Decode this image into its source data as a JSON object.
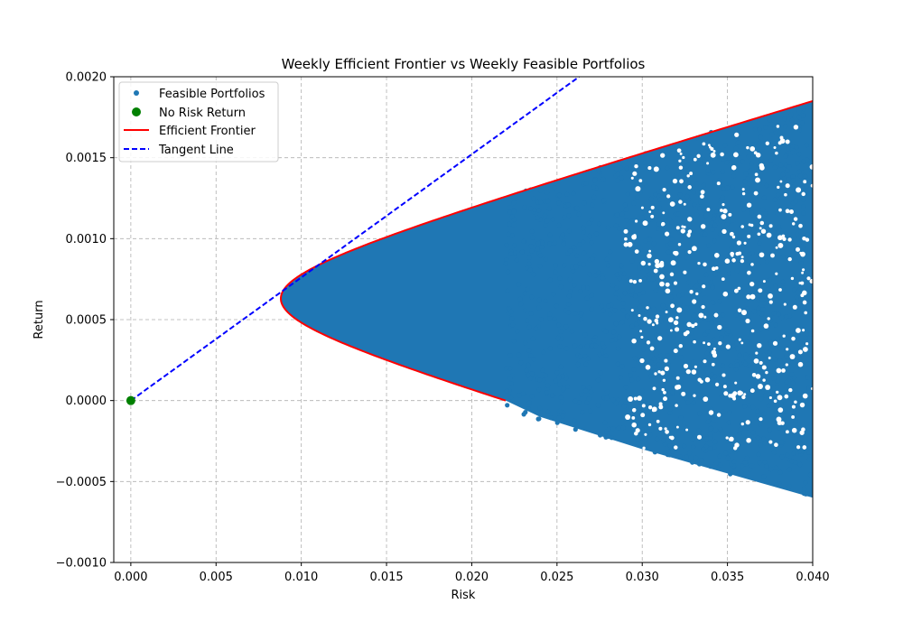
{
  "chart_data": {
    "type": "scatter",
    "title": "Weekly Efficient Frontier vs Weekly Feasible Portfolios",
    "xlabel": "Risk",
    "ylabel": "Return",
    "xlim": [
      -0.001,
      0.04
    ],
    "ylim": [
      -0.001,
      0.002
    ],
    "x_ticks": [
      0.0,
      0.005,
      0.01,
      0.015,
      0.02,
      0.025,
      0.03,
      0.035,
      0.04
    ],
    "x_tick_labels": [
      "0.000",
      "0.005",
      "0.010",
      "0.015",
      "0.020",
      "0.025",
      "0.030",
      "0.035",
      "0.040"
    ],
    "y_ticks": [
      -0.001,
      -0.0005,
      0.0,
      0.0005,
      0.001,
      0.0015,
      0.002
    ],
    "y_tick_labels": [
      "−0.0010",
      "−0.0005",
      "0.0000",
      "0.0005",
      "0.0010",
      "0.0015",
      "0.0020"
    ],
    "grid": true,
    "legend_position": "top-left",
    "colors": {
      "feasible": "#1f77b4",
      "risk_free": "#008000",
      "frontier": "#ff0000",
      "tangent": "#0000ff"
    },
    "series": [
      {
        "name": "Feasible Portfolios",
        "kind": "scatter",
        "description_region": "filled region right of the efficient frontier",
        "sample_points": [
          [
            0.009,
            0.0006
          ],
          [
            0.012,
            0.0009
          ],
          [
            0.015,
            0.0005
          ],
          [
            0.02,
            0.0003
          ],
          [
            0.025,
            0.0011
          ],
          [
            0.03,
            0.0002
          ],
          [
            0.035,
            -0.0002
          ],
          [
            0.04,
            0.0008
          ],
          [
            0.038,
            -0.0006
          ],
          [
            0.039,
            0.0018
          ]
        ]
      },
      {
        "name": "No Risk Return",
        "kind": "point",
        "points": [
          [
            0.0,
            0.0
          ]
        ]
      },
      {
        "name": "Efficient Frontier",
        "kind": "line",
        "min_variance_point": [
          0.0088,
          0.00063
        ],
        "upper_end": [
          0.04,
          0.00185
        ],
        "lower_end": [
          0.0211,
          0.0
        ]
      },
      {
        "name": "Tangent Line",
        "kind": "dashed-line",
        "points": [
          [
            0.0,
            0.0
          ],
          [
            0.0263,
            0.002
          ]
        ]
      }
    ]
  }
}
